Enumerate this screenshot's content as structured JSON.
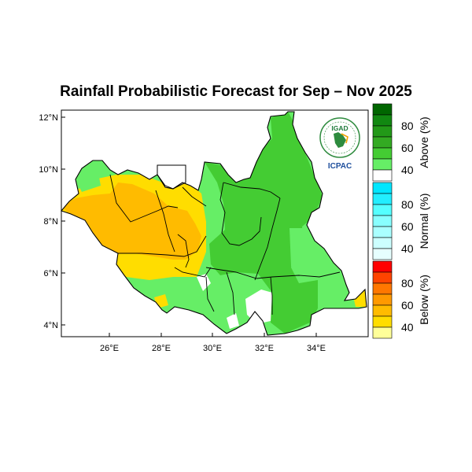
{
  "title": "Rainfall Probabilistic Forecast for Sep – Nov 2025",
  "axes": {
    "lon_ticks": [
      "26°E",
      "28°E",
      "30°E",
      "32°E",
      "34°E"
    ],
    "lat_ticks": [
      "4°N",
      "6°N",
      "8°N",
      "10°N",
      "12°N"
    ],
    "lon_range": [
      24.0,
      36.0
    ],
    "lat_range": [
      3.5,
      12.3
    ]
  },
  "colorbar": {
    "groups": [
      {
        "label": "Above (%)",
        "ticks": [
          "40",
          "60",
          "80"
        ],
        "colors": [
          "#ffffff",
          "#66ee66",
          "#44cc33",
          "#33aa22",
          "#229918",
          "#118811",
          "#006600"
        ]
      },
      {
        "label": "Normal (%)",
        "ticks": [
          "40",
          "60",
          "80"
        ],
        "colors": [
          "#e6ffff",
          "#ccffff",
          "#aaffff",
          "#88ffff",
          "#55ffff",
          "#22eeff",
          "#00e6ff"
        ]
      },
      {
        "label": "Below (%)",
        "ticks": [
          "40",
          "60",
          "80"
        ],
        "colors": [
          "#ffff99",
          "#ffdd00",
          "#ffbb00",
          "#ff9900",
          "#ff7700",
          "#ff4400",
          "#ff0000"
        ]
      }
    ]
  },
  "logo": {
    "top_text": "IGAD",
    "bottom_text": "ICPAC",
    "colors": {
      "ring": "#2e8b3e",
      "text_green": "#1e7a3a",
      "text_blue": "#1d4e9c",
      "accent": "#f2a400"
    }
  },
  "legend_colors": {
    "above_light": "#66ee66",
    "above_mid": "#44cc33",
    "below_mid": "#ffbb00",
    "below_high": "#ff9900",
    "no_data": "#ffffff"
  }
}
